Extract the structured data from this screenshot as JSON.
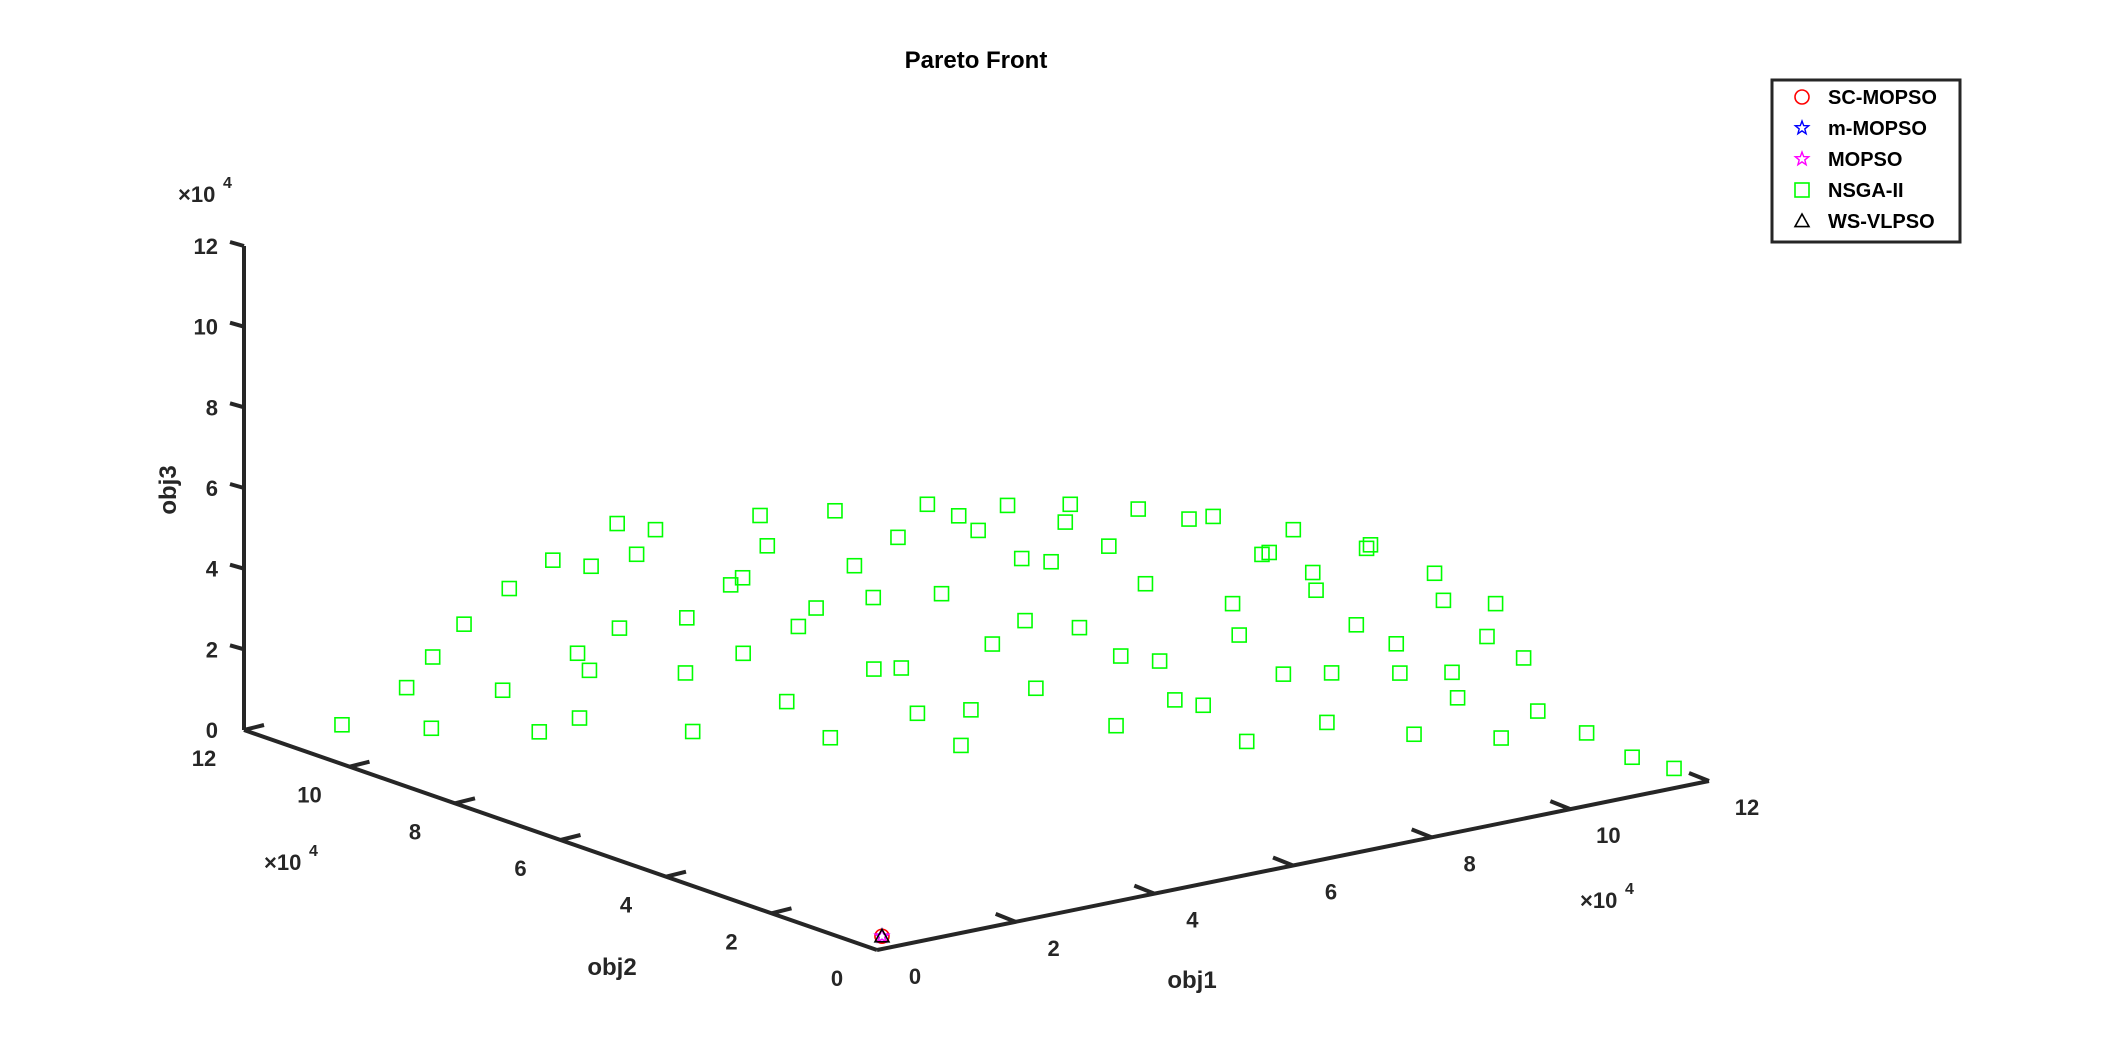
{
  "chart_data": {
    "type": "scatter",
    "title": "Pareto Front",
    "xlabel": "obj1",
    "ylabel": "obj2",
    "zlabel": "obj3",
    "axis_exponent": "×10",
    "axis_exponent_power": "4",
    "xlim": [
      0,
      12
    ],
    "ylim": [
      0,
      12
    ],
    "zlim": [
      0,
      12
    ],
    "xticks": [
      0,
      2,
      4,
      6,
      8,
      10,
      12
    ],
    "yticks": [
      0,
      2,
      4,
      6,
      8,
      10,
      12
    ],
    "zticks": [
      0,
      2,
      4,
      6,
      8,
      10,
      12
    ],
    "legend_position": "top-right",
    "series": [
      {
        "name": "SC-MOPSO",
        "marker": "circle",
        "color": "#ff0000",
        "points": [
          [
            0.3,
            0.3,
            0.1
          ]
        ]
      },
      {
        "name": "m-MOPSO",
        "marker": "star",
        "color": "#0000ff",
        "points": [
          [
            0.3,
            0.3,
            0.1
          ]
        ]
      },
      {
        "name": "MOPSO",
        "marker": "star",
        "color": "#ff00ff",
        "points": [
          [
            0.3,
            0.3,
            0.1
          ]
        ]
      },
      {
        "name": "NSGA-II",
        "marker": "square",
        "color": "#00ff00",
        "points": [
          [
            0.5,
            10.8,
            0.5
          ],
          [
            0.9,
            10.1,
            1.6
          ],
          [
            1.2,
            10.0,
            2.3
          ],
          [
            0.8,
            9.5,
            0.9
          ],
          [
            1.5,
            9.8,
            3.1
          ],
          [
            1.6,
            9.2,
            1.7
          ],
          [
            2.0,
            9.6,
            3.9
          ],
          [
            1.9,
            8.9,
            0.7
          ],
          [
            2.3,
            8.7,
            2.6
          ],
          [
            2.8,
            9.1,
            4.4
          ],
          [
            2.1,
            8.4,
            1.2
          ],
          [
            2.6,
            8.3,
            3.3
          ],
          [
            3.0,
            8.5,
            4.9
          ],
          [
            3.4,
            8.1,
            2.0
          ],
          [
            3.2,
            7.7,
            0.8
          ],
          [
            3.9,
            7.9,
            4.1
          ],
          [
            3.7,
            7.4,
            2.7
          ],
          [
            4.2,
            7.6,
            5.1
          ],
          [
            4.1,
            7.1,
            1.5
          ],
          [
            4.6,
            7.2,
            3.6
          ],
          [
            4.5,
            6.8,
            0.6
          ],
          [
            5.0,
            7.0,
            4.6
          ],
          [
            4.9,
            6.5,
            2.3
          ],
          [
            5.4,
            6.7,
            5.3
          ],
          [
            5.3,
            6.2,
            1.2
          ],
          [
            5.8,
            6.4,
            3.9
          ],
          [
            5.7,
            5.9,
            0.4
          ],
          [
            6.1,
            6.1,
            5.5
          ],
          [
            6.0,
            5.7,
            2.9
          ],
          [
            6.5,
            5.8,
            4.8
          ],
          [
            6.4,
            5.4,
            1.8
          ],
          [
            6.9,
            5.5,
            5.7
          ],
          [
            6.8,
            5.1,
            3.3
          ],
          [
            7.3,
            5.2,
            5.1
          ],
          [
            7.1,
            4.8,
            0.9
          ],
          [
            7.6,
            4.9,
            4.2
          ],
          [
            7.5,
            4.5,
            2.5
          ],
          [
            8.0,
            4.6,
            5.8
          ],
          [
            7.9,
            4.2,
            1.4
          ],
          [
            8.4,
            4.3,
            3.7
          ],
          [
            8.3,
            3.9,
            0.5
          ],
          [
            8.7,
            4.0,
            5.0
          ],
          [
            8.6,
            3.6,
            2.2
          ],
          [
            9.1,
            3.7,
            4.5
          ],
          [
            9.0,
            3.3,
            1.0
          ],
          [
            9.5,
            3.4,
            3.2
          ],
          [
            9.4,
            3.0,
            5.4
          ],
          [
            9.9,
            3.1,
            2.0
          ],
          [
            9.8,
            2.7,
            0.7
          ],
          [
            10.3,
            2.8,
            3.8
          ],
          [
            10.2,
            2.4,
            1.6
          ],
          [
            10.7,
            2.5,
            2.9
          ],
          [
            10.6,
            2.1,
            0.6
          ],
          [
            11.0,
            2.2,
            2.4
          ],
          [
            10.9,
            1.8,
            1.3
          ],
          [
            11.3,
            1.4,
            0.8
          ],
          [
            11.5,
            0.8,
            0.4
          ],
          [
            11.8,
            0.4,
            0.2
          ],
          [
            3.5,
            8.8,
            5.2
          ],
          [
            4.4,
            8.0,
            5.6
          ],
          [
            5.1,
            7.5,
            5.7
          ],
          [
            5.9,
            6.8,
            5.9
          ],
          [
            6.6,
            6.2,
            5.9
          ],
          [
            7.2,
            5.8,
            5.9
          ],
          [
            7.8,
            5.3,
            5.8
          ],
          [
            8.5,
            4.8,
            5.6
          ],
          [
            9.2,
            4.2,
            5.3
          ],
          [
            9.8,
            3.6,
            4.9
          ],
          [
            10.4,
            3.1,
            4.3
          ],
          [
            10.9,
            2.6,
            3.6
          ],
          [
            2.4,
            9.3,
            4.6
          ],
          [
            3.1,
            9.0,
            5.4
          ],
          [
            6.2,
            6.6,
            5.6
          ],
          [
            6.7,
            6.0,
            3.1
          ],
          [
            5.6,
            6.9,
            1.9
          ],
          [
            4.8,
            7.8,
            2.8
          ],
          [
            8.8,
            4.7,
            2.6
          ],
          [
            9.6,
            4.0,
            1.7
          ],
          [
            3.8,
            8.6,
            3.0
          ],
          [
            7.0,
            5.9,
            4.5
          ],
          [
            6.3,
            6.5,
            0.8
          ],
          [
            8.1,
            5.0,
            1.1
          ],
          [
            9.3,
            3.9,
            3.9
          ],
          [
            10.0,
            3.3,
            2.6
          ],
          [
            2.7,
            9.0,
            1.9
          ],
          [
            4.3,
            8.2,
            4.0
          ],
          [
            5.5,
            7.3,
            3.5
          ],
          [
            7.7,
            5.5,
            2.1
          ],
          [
            8.9,
            4.4,
            4.7
          ],
          [
            10.5,
            2.9,
            1.9
          ]
        ]
      },
      {
        "name": "WS-VLPSO",
        "marker": "triangle",
        "color": "#000000",
        "points": [
          [
            0.3,
            0.3,
            0.1
          ]
        ]
      }
    ]
  }
}
